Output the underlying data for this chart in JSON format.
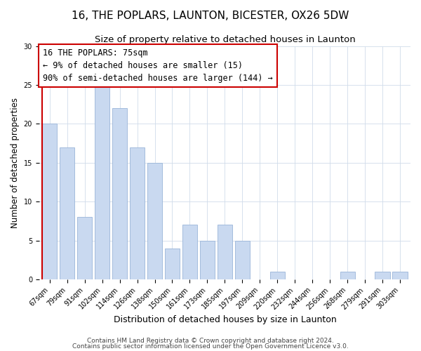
{
  "title": "16, THE POPLARS, LAUNTON, BICESTER, OX26 5DW",
  "subtitle": "Size of property relative to detached houses in Launton",
  "xlabel": "Distribution of detached houses by size in Launton",
  "ylabel": "Number of detached properties",
  "bar_labels": [
    "67sqm",
    "79sqm",
    "91sqm",
    "102sqm",
    "114sqm",
    "126sqm",
    "138sqm",
    "150sqm",
    "161sqm",
    "173sqm",
    "185sqm",
    "197sqm",
    "209sqm",
    "220sqm",
    "232sqm",
    "244sqm",
    "256sqm",
    "268sqm",
    "279sqm",
    "291sqm",
    "303sqm"
  ],
  "bar_values": [
    20,
    17,
    8,
    25,
    22,
    17,
    15,
    4,
    7,
    5,
    7,
    5,
    0,
    1,
    0,
    0,
    0,
    1,
    0,
    1,
    1
  ],
  "bar_color": "#c9d9f0",
  "bar_edge_color": "#9ab5d8",
  "highlight_color": "#cc0000",
  "ylim": [
    0,
    30
  ],
  "yticks": [
    0,
    5,
    10,
    15,
    20,
    25,
    30
  ],
  "annotation_line1": "16 THE POPLARS: 75sqm",
  "annotation_line2": "← 9% of detached houses are smaller (15)",
  "annotation_line3": "90% of semi-detached houses are larger (144) →",
  "annotation_box_color": "#ffffff",
  "annotation_box_edge": "#cc0000",
  "footer1": "Contains HM Land Registry data © Crown copyright and database right 2024.",
  "footer2": "Contains public sector information licensed under the Open Government Licence v3.0.",
  "title_fontsize": 11,
  "subtitle_fontsize": 9.5,
  "ylabel_fontsize": 8.5,
  "xlabel_fontsize": 9,
  "tick_fontsize": 7,
  "annotation_fontsize": 8.5,
  "footer_fontsize": 6.5,
  "grid_color": "#d0dcea"
}
